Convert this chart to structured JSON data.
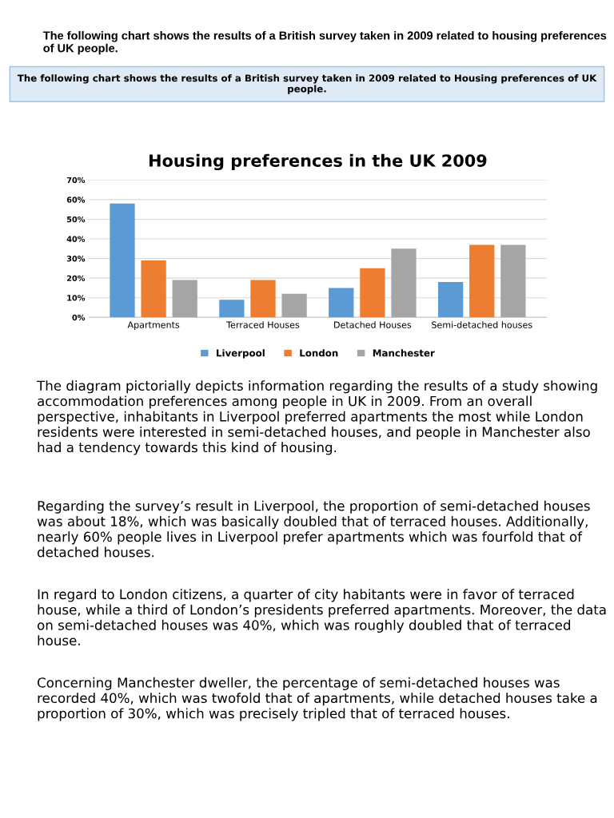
{
  "chart_data": {
    "type": "bar",
    "title": "Housing preferences in the UK 2009",
    "categories": [
      "Apartments",
      "Terraced Houses",
      "Detached Houses",
      "Semi-detached houses"
    ],
    "series": [
      {
        "name": "Liverpool",
        "color": "#5b9bd5",
        "values": [
          58,
          9,
          15,
          18
        ]
      },
      {
        "name": "London",
        "color": "#ed7d31",
        "values": [
          29,
          19,
          25,
          37
        ]
      },
      {
        "name": "Manchester",
        "color": "#a5a5a5",
        "values": [
          19,
          12,
          35,
          37
        ]
      }
    ],
    "ylim": [
      0,
      70
    ],
    "yticks": [
      {
        "value": 0,
        "label": "0%"
      },
      {
        "value": 10,
        "label": "10%"
      },
      {
        "value": 20,
        "label": "20%"
      },
      {
        "value": 30,
        "label": "30%"
      },
      {
        "value": 40,
        "label": "40%"
      },
      {
        "value": 50,
        "label": "50%"
      },
      {
        "value": 60,
        "label": "60%"
      },
      {
        "value": 70,
        "label": "70%"
      }
    ],
    "grid": "y",
    "legend": "bottom",
    "annotations": [
      "The following chart shows the results of a British survey taken in 2009 related to housing preferences of UK people.",
      "The following chart shows the results of a British survey taken in 2009 related to Housing preferences of UK people.",
      "The diagram pictorially depicts information regarding the results of a study showing accommodation preferences among people in UK in 2009. From an overall perspective, inhabitants in Liverpool preferred apartments the most while London residents were interested in semi-detached houses, and people in Manchester also had a tendency towards this kind of housing.",
      "Regarding the survey’s result in Liverpool, the proportion of semi-detached houses was about 18%, which was basically doubled that of terraced houses. Additionally, nearly 60% people lives in Liverpool prefer apartments which was fourfold that of detached houses.",
      "In regard to London citizens, a quarter of city habitants were in favor of terraced house, while a third of London’s presidents preferred apartments. Moreover, the data on semi-detached houses was 40%, which was roughly doubled that of terraced house.",
      "Concerning Manchester dweller, the percentage of semi-detached houses was recorded 40%, which was twofold that of apartments, while detached houses take a proportion of 30%, which was precisely tripled that of terraced houses."
    ]
  }
}
